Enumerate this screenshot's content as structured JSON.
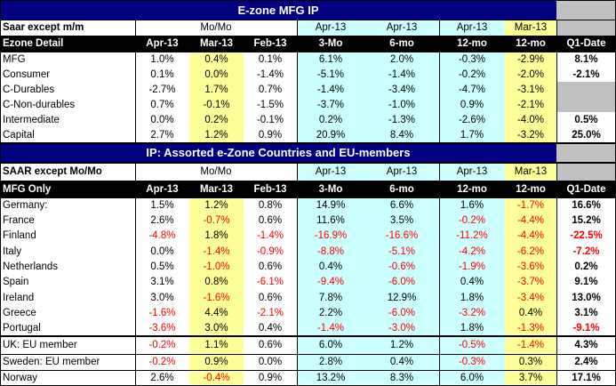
{
  "section1": {
    "title": "E-zone MFG IP",
    "header1": {
      "label": "Saar except m/m",
      "group_momo": "Mo/Mo",
      "c4": "Apr-13",
      "c5": "Apr-13",
      "c6": "Apr-13",
      "c7": "Mar-13",
      "c8": ""
    },
    "header2": {
      "label": "Ezone Detail",
      "cols": [
        "Apr-13",
        "Mar-13",
        "Feb-13",
        "3-Mo",
        "6-mo",
        "12-mo",
        "12-mo",
        "Q1-Date"
      ]
    },
    "rows": [
      {
        "label": "MFG",
        "values": [
          "1.0%",
          "0.4%",
          "0.1%",
          "6.1%",
          "2.0%",
          "-0.3%",
          "-2.9%",
          "8.1%"
        ]
      },
      {
        "label": "Consumer",
        "values": [
          "0.1%",
          "0.0%",
          "-1.4%",
          "-5.1%",
          "-1.4%",
          "-0.2%",
          "-2.0%",
          "-2.1%"
        ]
      },
      {
        "label": "  C-Durables",
        "values": [
          "-2.7%",
          "1.7%",
          "0.7%",
          "-1.4%",
          "-3.4%",
          "-4.7%",
          "-3.1%",
          ""
        ]
      },
      {
        "label": "    C-Non-durables",
        "values": [
          "0.7%",
          "-0.1%",
          "-1.5%",
          "-3.7%",
          "-1.0%",
          "0.9%",
          "-2.1%",
          ""
        ]
      },
      {
        "label": "Intermediate",
        "values": [
          "0.0%",
          "0.2%",
          "-0.1%",
          "0.2%",
          "-1.3%",
          "-2.6%",
          "-4.0%",
          "0.5%"
        ]
      },
      {
        "label": "Capital",
        "values": [
          "2.7%",
          "1.2%",
          "0.9%",
          "20.9%",
          "8.4%",
          "1.7%",
          "-3.2%",
          "25.0%"
        ]
      }
    ]
  },
  "section2": {
    "title": "IP: Assorted e-Zone Countries and EU-members",
    "header1": {
      "label": "SAAR except Mo/Mo",
      "group_momo": "Mo/Mo",
      "c4": "Apr-13",
      "c5": "Apr-13",
      "c6": "Apr-13",
      "c7": "Mar-13",
      "c8": ""
    },
    "header2": {
      "label": "MFG Only",
      "cols": [
        "Apr-13",
        "Mar-13",
        "Feb-13",
        "3-Mo",
        "6-mo",
        "12-mo",
        "12-mo",
        "Q1-Date"
      ]
    },
    "rows": [
      {
        "label": "Germany:",
        "values": [
          "1.5%",
          "1.2%",
          "0.8%",
          "14.9%",
          "6.6%",
          "1.6%",
          "-1.7%",
          "16.6%"
        ]
      },
      {
        "label": "France",
        "values": [
          "2.6%",
          "-0.7%",
          "0.6%",
          "11.6%",
          "3.5%",
          "-0.2%",
          "-4.4%",
          "15.2%"
        ]
      },
      {
        "label": "Finland",
        "values": [
          "-4.8%",
          "1.8%",
          "-1.4%",
          "-16.9%",
          "-16.6%",
          "-11.2%",
          "-4.4%",
          "-22.5%"
        ]
      },
      {
        "label": " Italy",
        "values": [
          "0.0%",
          "-1.4%",
          "-0.9%",
          "-8.8%",
          "-5.1%",
          "-4.2%",
          "-6.2%",
          "-7.2%"
        ]
      },
      {
        "label": "Netherlands",
        "values": [
          "0.5%",
          "-1.0%",
          "0.6%",
          "0.4%",
          "-0.6%",
          "-1.9%",
          "-3.6%",
          "0.2%"
        ]
      },
      {
        "label": "Spain",
        "values": [
          "3.1%",
          "0.8%",
          "-6.1%",
          "-9.4%",
          "-6.0%",
          "0.4%",
          "-3.7%",
          "9.1%"
        ]
      },
      {
        "label": "Ireland",
        "values": [
          "3.0%",
          "-1.6%",
          "0.6%",
          "7.8%",
          "12.9%",
          "1.8%",
          "-3.4%",
          "13.0%"
        ]
      },
      {
        "label": "Greece",
        "values": [
          "-1.6%",
          "4.4%",
          "-2.1%",
          "2.2%",
          "-6.0%",
          "-3.2%",
          "0.4%",
          "3.1%"
        ]
      },
      {
        "label": "Portugal",
        "values": [
          "-3.6%",
          "3.0%",
          "0.4%",
          "-1.4%",
          "-3.0%",
          "1.8%",
          "-1.3%",
          "-9.1%"
        ]
      }
    ],
    "eu_rows": [
      {
        "label": "UK: EU member",
        "values": [
          "-0.2%",
          "1.1%",
          "0.6%",
          "6.0%",
          "1.2%",
          "-0.5%",
          "-1.4%",
          "4.3%"
        ]
      },
      {
        "label": "Sweden: EU member",
        "values": [
          "-0.2%",
          "0.9%",
          "0.0%",
          "2.8%",
          "0.4%",
          "-0.3%",
          "0.3%",
          "2.4%"
        ]
      },
      {
        "label": "Norway",
        "values": [
          "2.6%",
          "-0.4%",
          "0.9%",
          "13.2%",
          "8.3%",
          "6.0%",
          "3.7%",
          "17.1%"
        ]
      }
    ]
  },
  "colors": {
    "title_bg": "#000080",
    "header_bg": "#000000",
    "cyan": "#ccffff",
    "yellow": "#ffff99",
    "grey": "#c0c0c0",
    "negative": "#ff0000"
  }
}
